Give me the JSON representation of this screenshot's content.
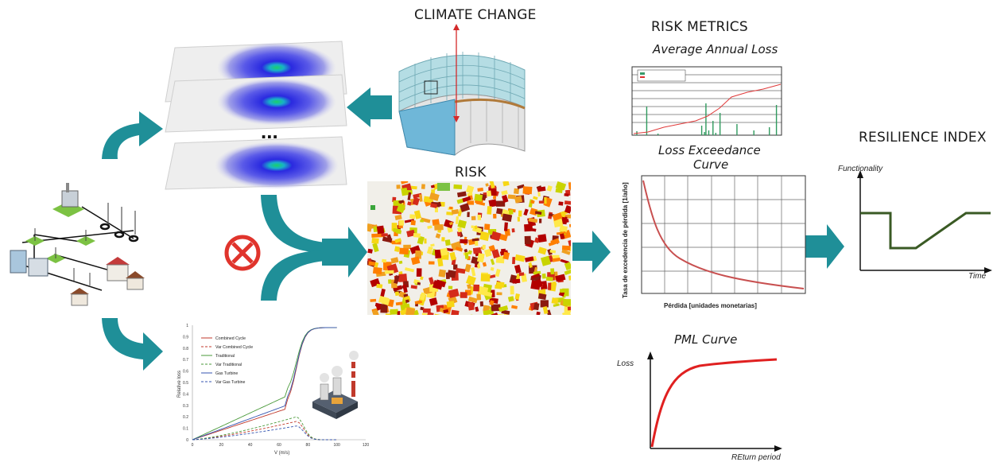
{
  "labels": {
    "climate_change": "CLIMATE CHANGE",
    "risk_metrics": "RISK METRICS",
    "average_annual_loss": "Average Annual Loss",
    "loss_exceedance_curve_line1": "Loss Exceedance",
    "loss_exceedance_curve_line2": "Curve",
    "risk": "RISK",
    "resilience_index": "RESILIENCE INDEX",
    "pml_curve": "PML Curve",
    "ellipsis": "..."
  },
  "resilience_plot": {
    "ylabel": "Functionality",
    "xlabel": "Time"
  },
  "pml_plot": {
    "ylabel": "Loss",
    "xlabel": "REturn period"
  },
  "exceedance_plot": {
    "ylabel": "Tasa de excedencia de pérdida [1/año]",
    "xlabel": "Pérdida [unidades monetarias]"
  },
  "fragility_chart": {
    "ylabel": "Relative loss",
    "xlabel": "V (m/s)",
    "y_ticks": [
      "0",
      "0.1",
      "0.2",
      "0.3",
      "0.4",
      "0.5",
      "0.6",
      "0.7",
      "0.8",
      "0.9",
      "1"
    ],
    "x_ticks": [
      "0",
      "20",
      "40",
      "60",
      "80",
      "100",
      "120"
    ],
    "legend": [
      "Combined Cycle",
      "Var Combined Cycle",
      "Traditional",
      "Var Traditional",
      "Gas Turbine",
      "Var Gas Turbine"
    ]
  },
  "colors": {
    "arrow_teal": "#1f8f98",
    "no_symbol_red": "#e0342c",
    "curve_red": "#e02020",
    "resilience_green": "#3a5a24"
  }
}
